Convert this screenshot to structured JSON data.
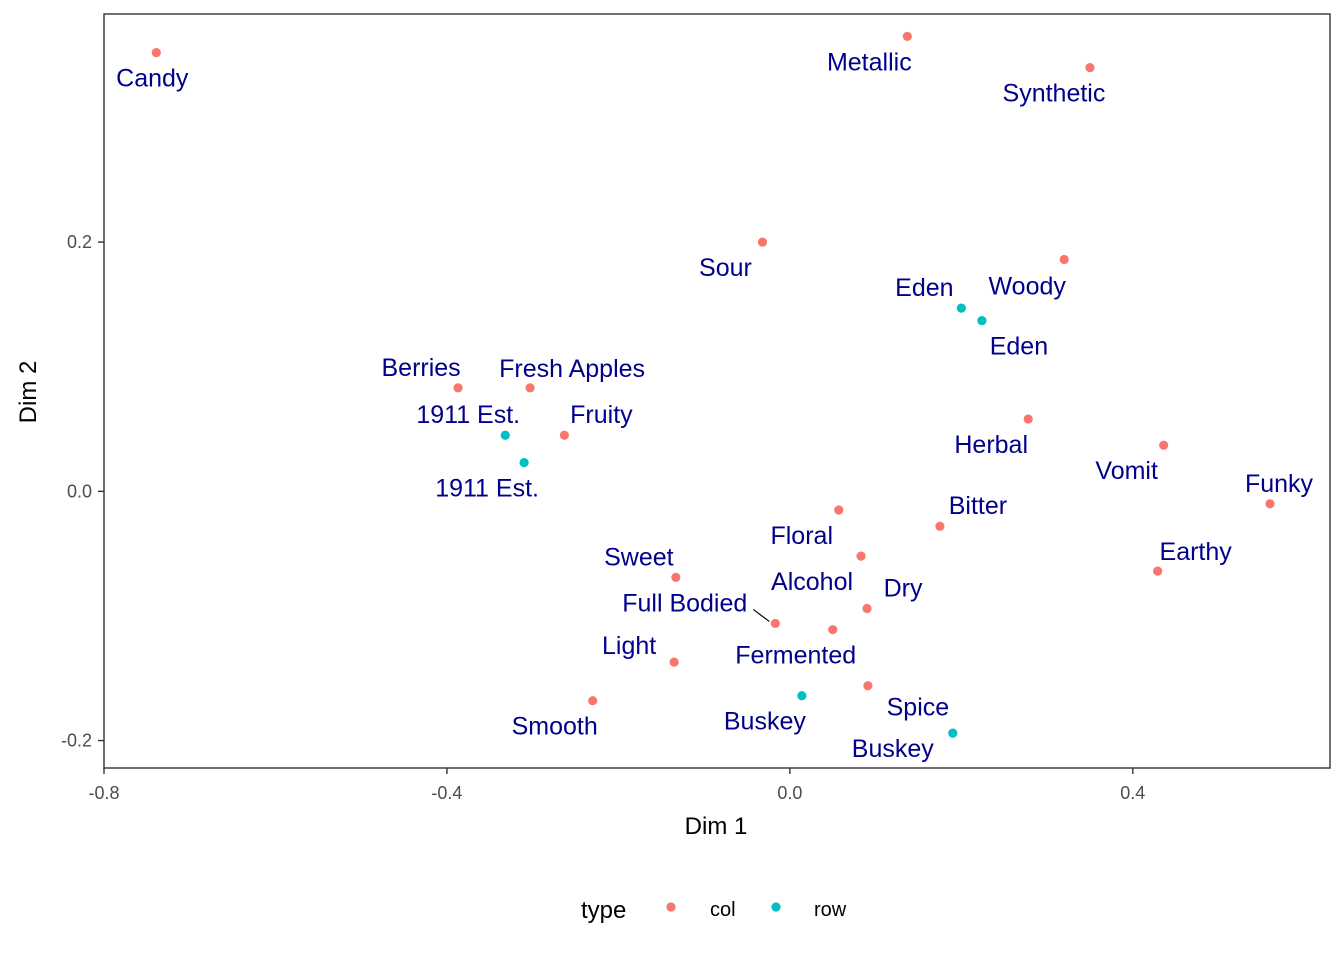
{
  "chart_data": {
    "type": "scatter",
    "xlabel": "Dim 1",
    "ylabel": "Dim 2",
    "xlim": [
      -0.8,
      0.63
    ],
    "ylim": [
      -0.222,
      0.383
    ],
    "x_ticks": [
      -0.8,
      -0.4,
      0.0,
      0.4
    ],
    "x_tick_labels": [
      "-0.8",
      "-0.4",
      "0.0",
      "0.4"
    ],
    "y_ticks": [
      -0.2,
      0.0,
      0.2
    ],
    "y_tick_labels": [
      "-0.2",
      "0.0",
      "0.2"
    ],
    "grid": false,
    "legend": {
      "title": "type",
      "position": "bottom",
      "entries": [
        {
          "name": "col",
          "color": "#F8766D"
        },
        {
          "name": "row",
          "color": "#00BFC4"
        }
      ]
    },
    "label_color": "#00008B",
    "points": [
      {
        "label": "Candy",
        "x": -0.739,
        "y": 0.352,
        "type": "col",
        "anchor": "middle",
        "dx": -4,
        "dy": 34
      },
      {
        "label": "Metallic",
        "x": 0.137,
        "y": 0.365,
        "type": "col",
        "anchor": "middle",
        "dx": -38,
        "dy": 34
      },
      {
        "label": "Synthetic",
        "x": 0.35,
        "y": 0.34,
        "type": "col",
        "anchor": "middle",
        "dx": -36,
        "dy": 34
      },
      {
        "label": "Sour",
        "x": -0.032,
        "y": 0.2,
        "type": "col",
        "anchor": "middle",
        "dx": -37,
        "dy": 34
      },
      {
        "label": "Woody",
        "x": 0.32,
        "y": 0.186,
        "type": "col",
        "anchor": "middle",
        "dx": -37,
        "dy": 35
      },
      {
        "label": "Berries",
        "x": -0.387,
        "y": 0.083,
        "type": "col",
        "anchor": "middle",
        "dx": -37,
        "dy": -12
      },
      {
        "label": "Fresh Apples",
        "x": -0.303,
        "y": 0.083,
        "type": "col",
        "anchor": "middle",
        "dx": 42,
        "dy": -11
      },
      {
        "label": "Fruity",
        "x": -0.263,
        "y": 0.045,
        "type": "col",
        "anchor": "middle",
        "dx": 37,
        "dy": -12
      },
      {
        "label": "Herbal",
        "x": 0.278,
        "y": 0.058,
        "type": "col",
        "anchor": "middle",
        "dx": -37,
        "dy": 34
      },
      {
        "label": "Vomit",
        "x": 0.436,
        "y": 0.037,
        "type": "col",
        "anchor": "middle",
        "dx": -37,
        "dy": 34
      },
      {
        "label": "Funky",
        "x": 0.56,
        "y": -0.01,
        "type": "col",
        "anchor": "middle",
        "dx": 9,
        "dy": -12
      },
      {
        "label": "Bitter",
        "x": 0.175,
        "y": -0.028,
        "type": "col",
        "anchor": "middle",
        "dx": 38,
        "dy": -12
      },
      {
        "label": "Floral",
        "x": 0.057,
        "y": -0.015,
        "type": "col",
        "anchor": "middle",
        "dx": -37,
        "dy": 34
      },
      {
        "label": "Alcohol",
        "x": 0.083,
        "y": -0.052,
        "type": "col",
        "anchor": "middle",
        "dx": -49,
        "dy": 34
      },
      {
        "label": "Earthy",
        "x": 0.429,
        "y": -0.064,
        "type": "col",
        "anchor": "middle",
        "dx": 38,
        "dy": -11
      },
      {
        "label": "Sweet",
        "x": -0.133,
        "y": -0.069,
        "type": "col",
        "anchor": "middle",
        "dx": -37,
        "dy": -12
      },
      {
        "label": "Dry",
        "x": 0.09,
        "y": -0.094,
        "type": "col",
        "anchor": "middle",
        "dx": 36,
        "dy": -12
      },
      {
        "label": "Full Bodied",
        "x": -0.017,
        "y": -0.106,
        "type": "col",
        "anchor": "end",
        "dx": -28,
        "dy": -12,
        "leader": true
      },
      {
        "label": "Fermented",
        "x": 0.05,
        "y": -0.111,
        "type": "col",
        "anchor": "middle",
        "dx": -37,
        "dy": 34
      },
      {
        "label": "Light",
        "x": -0.135,
        "y": -0.137,
        "type": "col",
        "anchor": "middle",
        "dx": -45,
        "dy": -8
      },
      {
        "label": "Spice",
        "x": 0.091,
        "y": -0.156,
        "type": "col",
        "anchor": "middle",
        "dx": 50,
        "dy": 30
      },
      {
        "label": "Smooth",
        "x": -0.23,
        "y": -0.168,
        "type": "col",
        "anchor": "middle",
        "dx": -38,
        "dy": 34
      },
      {
        "label": "Eden",
        "x": 0.2,
        "y": 0.147,
        "type": "row",
        "anchor": "middle",
        "dx": -37,
        "dy": -12
      },
      {
        "label": "Eden",
        "x": 0.224,
        "y": 0.137,
        "type": "row",
        "anchor": "middle",
        "dx": 37,
        "dy": 34
      },
      {
        "label": "1911 Est.",
        "x": -0.332,
        "y": 0.045,
        "type": "row",
        "anchor": "middle",
        "dx": -37,
        "dy": -12
      },
      {
        "label": "1911 Est.",
        "x": -0.31,
        "y": 0.023,
        "type": "row",
        "anchor": "middle",
        "dx": -37,
        "dy": 34
      },
      {
        "label": "Buskey",
        "x": 0.014,
        "y": -0.164,
        "type": "row",
        "anchor": "middle",
        "dx": -37,
        "dy": 34
      },
      {
        "label": "Buskey",
        "x": 0.19,
        "y": -0.194,
        "type": "row",
        "anchor": "middle",
        "dx": -60,
        "dy": 24
      }
    ]
  }
}
